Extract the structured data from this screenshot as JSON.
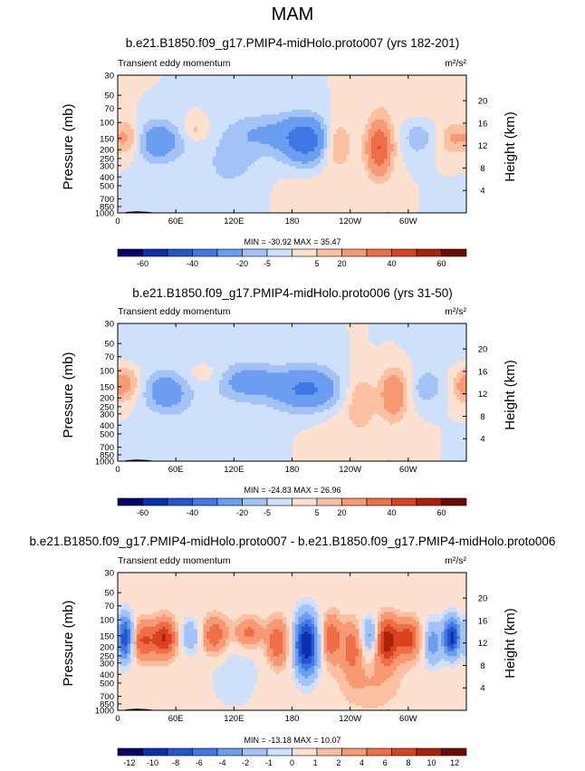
{
  "figure": {
    "title": "MAM"
  },
  "colors": {
    "palette": [
      "#08006e",
      "#0b2fae",
      "#2355cf",
      "#3f77e4",
      "#6b9df0",
      "#a3c3f6",
      "#cfe0fb",
      "#fde1d0",
      "#fbbfa1",
      "#f79a74",
      "#ee6e47",
      "#d8421f",
      "#aa2207",
      "#6e0a00"
    ],
    "land": "#000000",
    "frame": "#000000"
  },
  "chart_data": [
    {
      "type": "heatmap",
      "title": "b.e21.B1850.f09_g17.PMIP4-midHolo.proto007 (yrs 182-201)",
      "left_label": "Transient eddy momentum",
      "units": "m²/s²",
      "xlabel": "",
      "ylabel": "Pressure (mb)",
      "y2label": "Height (km)",
      "x_ticks": [
        "0",
        "60E",
        "120E",
        "180",
        "120W",
        "60W"
      ],
      "x_tick_values": [
        0,
        60,
        120,
        180,
        240,
        300
      ],
      "xlim": [
        0,
        360
      ],
      "y_ticks": [
        "30",
        "50",
        "70",
        "100",
        "150",
        "200",
        "250",
        "300",
        "400",
        "500",
        "700",
        "850",
        "1000"
      ],
      "y_tick_values": [
        30,
        50,
        70,
        100,
        150,
        200,
        250,
        300,
        400,
        500,
        700,
        850,
        1000
      ],
      "ylim": [
        1000,
        30
      ],
      "y2_ticks": [
        "20",
        "16",
        "12",
        "8",
        "4"
      ],
      "y2_tick_values": [
        20,
        16,
        12,
        8,
        4
      ],
      "stats": "MIN = -30.92  MAX =  35.47",
      "min": -30.92,
      "max": 35.47,
      "colorbar_labels": [
        "-60",
        "-40",
        "-20",
        "-5",
        "5",
        "20",
        "40",
        "60"
      ],
      "blobs": [
        {
          "lon": 10,
          "p": 150,
          "v": 14,
          "wl": 12,
          "wy": 0.09
        },
        {
          "lon": 40,
          "p": 160,
          "v": -18,
          "wl": 18,
          "wy": 0.1
        },
        {
          "lon": 80,
          "p": 120,
          "v": 7,
          "wl": 10,
          "wy": 0.06
        },
        {
          "lon": 120,
          "p": 250,
          "v": -5,
          "wl": 20,
          "wy": 0.12
        },
        {
          "lon": 150,
          "p": 130,
          "v": -10,
          "wl": 28,
          "wy": 0.1
        },
        {
          "lon": 195,
          "p": 160,
          "v": -26,
          "wl": 18,
          "wy": 0.12
        },
        {
          "lon": 225,
          "p": 170,
          "v": 14,
          "wl": 11,
          "wy": 0.12
        },
        {
          "lon": 270,
          "p": 190,
          "v": 30,
          "wl": 9,
          "wy": 0.14
        },
        {
          "lon": 310,
          "p": 150,
          "v": -9,
          "wl": 10,
          "wy": 0.08
        },
        {
          "lon": 345,
          "p": 150,
          "v": 9,
          "wl": 9,
          "wy": 0.08
        },
        {
          "lon": 100,
          "p": 500,
          "v": -3,
          "wl": 40,
          "wy": 0.18
        },
        {
          "lon": 200,
          "p": 600,
          "v": 3,
          "wl": 30,
          "wy": 0.15
        },
        {
          "lon": 300,
          "p": 60,
          "v": 3,
          "wl": 30,
          "wy": 0.08
        }
      ]
    },
    {
      "type": "heatmap",
      "title": "b.e21.B1850.f09_g17.PMIP4-midHolo.proto006 (yrs 31-50)",
      "left_label": "Transient eddy momentum",
      "units": "m²/s²",
      "xlabel": "",
      "ylabel": "Pressure (mb)",
      "y2label": "Height (km)",
      "x_ticks": [
        "0",
        "60E",
        "120E",
        "180",
        "120W",
        "60W"
      ],
      "x_tick_values": [
        0,
        60,
        120,
        180,
        240,
        300
      ],
      "xlim": [
        0,
        360
      ],
      "y_ticks": [
        "30",
        "50",
        "70",
        "100",
        "150",
        "200",
        "250",
        "300",
        "400",
        "500",
        "700",
        "850",
        "1000"
      ],
      "y_tick_values": [
        30,
        50,
        70,
        100,
        150,
        200,
        250,
        300,
        400,
        500,
        700,
        850,
        1000
      ],
      "ylim": [
        1000,
        30
      ],
      "y2_ticks": [
        "20",
        "16",
        "12",
        "8",
        "4"
      ],
      "y2_tick_values": [
        20,
        16,
        12,
        8,
        4
      ],
      "stats": "MIN = -24.83  MAX =  26.96",
      "min": -24.83,
      "max": 26.96,
      "colorbar_labels": [
        "-60",
        "-40",
        "-20",
        "-5",
        "5",
        "20",
        "40",
        "60"
      ],
      "blobs": [
        {
          "lon": 8,
          "p": 140,
          "v": 12,
          "wl": 10,
          "wy": 0.09
        },
        {
          "lon": 50,
          "p": 170,
          "v": -16,
          "wl": 16,
          "wy": 0.1
        },
        {
          "lon": 90,
          "p": 110,
          "v": 4,
          "wl": 14,
          "wy": 0.06
        },
        {
          "lon": 135,
          "p": 130,
          "v": -14,
          "wl": 22,
          "wy": 0.09
        },
        {
          "lon": 195,
          "p": 160,
          "v": -22,
          "wl": 24,
          "wy": 0.11
        },
        {
          "lon": 250,
          "p": 200,
          "v": 9,
          "wl": 12,
          "wy": 0.13
        },
        {
          "lon": 285,
          "p": 180,
          "v": 20,
          "wl": 9,
          "wy": 0.12
        },
        {
          "lon": 320,
          "p": 150,
          "v": -10,
          "wl": 10,
          "wy": 0.08
        },
        {
          "lon": 355,
          "p": 150,
          "v": 8,
          "wl": 7,
          "wy": 0.08
        },
        {
          "lon": 100,
          "p": 400,
          "v": -3,
          "wl": 40,
          "wy": 0.2
        },
        {
          "lon": 40,
          "p": 60,
          "v": -3,
          "wl": 50,
          "wy": 0.07
        },
        {
          "lon": 240,
          "p": 500,
          "v": 3,
          "wl": 30,
          "wy": 0.15
        }
      ]
    },
    {
      "type": "heatmap",
      "title": "b.e21.B1850.f09_g17.PMIP4-midHolo.proto007 - b.e21.B1850.f09_g17.PMIP4-midHolo.proto006",
      "left_label": "Transient eddy momentum",
      "units": "m²/s²",
      "xlabel": "",
      "ylabel": "Pressure (mb)",
      "y2label": "Height (km)",
      "x_ticks": [
        "0",
        "60E",
        "120E",
        "180",
        "120W",
        "60W"
      ],
      "x_tick_values": [
        0,
        60,
        120,
        180,
        240,
        300
      ],
      "xlim": [
        0,
        360
      ],
      "y_ticks": [
        "30",
        "50",
        "70",
        "100",
        "150",
        "200",
        "250",
        "300",
        "400",
        "500",
        "700",
        "850",
        "1000"
      ],
      "y_tick_values": [
        30,
        50,
        70,
        100,
        150,
        200,
        250,
        300,
        400,
        500,
        700,
        850,
        1000
      ],
      "ylim": [
        1000,
        30
      ],
      "y2_ticks": [
        "20",
        "16",
        "12",
        "8",
        "4"
      ],
      "y2_tick_values": [
        20,
        16,
        12,
        8,
        4
      ],
      "stats": "MIN = -13.18  MAX =  10.07",
      "min": -13.18,
      "max": 10.07,
      "colorbar_labels": [
        "-12",
        "-10",
        "-8",
        "-6",
        "-4",
        "-2",
        "-1",
        "0",
        "1",
        "2",
        "4",
        "6",
        "8",
        "10",
        "12"
      ],
      "blobs": [
        {
          "lon": 8,
          "p": 160,
          "v": -10,
          "wl": 6,
          "wy": 0.12
        },
        {
          "lon": 25,
          "p": 170,
          "v": 6,
          "wl": 9,
          "wy": 0.1
        },
        {
          "lon": 48,
          "p": 160,
          "v": 8,
          "wl": 9,
          "wy": 0.1
        },
        {
          "lon": 75,
          "p": 150,
          "v": -4,
          "wl": 8,
          "wy": 0.09
        },
        {
          "lon": 100,
          "p": 150,
          "v": 6,
          "wl": 10,
          "wy": 0.1
        },
        {
          "lon": 135,
          "p": 140,
          "v": 5,
          "wl": 10,
          "wy": 0.08
        },
        {
          "lon": 165,
          "p": 180,
          "v": 6,
          "wl": 8,
          "wy": 0.12
        },
        {
          "lon": 195,
          "p": 190,
          "v": -12,
          "wl": 9,
          "wy": 0.16
        },
        {
          "lon": 220,
          "p": 160,
          "v": 6,
          "wl": 8,
          "wy": 0.12
        },
        {
          "lon": 242,
          "p": 200,
          "v": 5,
          "wl": 7,
          "wy": 0.13
        },
        {
          "lon": 260,
          "p": 150,
          "v": -5,
          "wl": 6,
          "wy": 0.1
        },
        {
          "lon": 278,
          "p": 170,
          "v": 9,
          "wl": 8,
          "wy": 0.12
        },
        {
          "lon": 300,
          "p": 160,
          "v": 7,
          "wl": 9,
          "wy": 0.1
        },
        {
          "lon": 325,
          "p": 180,
          "v": -5,
          "wl": 7,
          "wy": 0.12
        },
        {
          "lon": 345,
          "p": 155,
          "v": -11,
          "wl": 6,
          "wy": 0.1
        },
        {
          "lon": 120,
          "p": 400,
          "v": -2,
          "wl": 20,
          "wy": 0.2
        },
        {
          "lon": 260,
          "p": 500,
          "v": 2,
          "wl": 25,
          "wy": 0.15
        }
      ]
    }
  ]
}
